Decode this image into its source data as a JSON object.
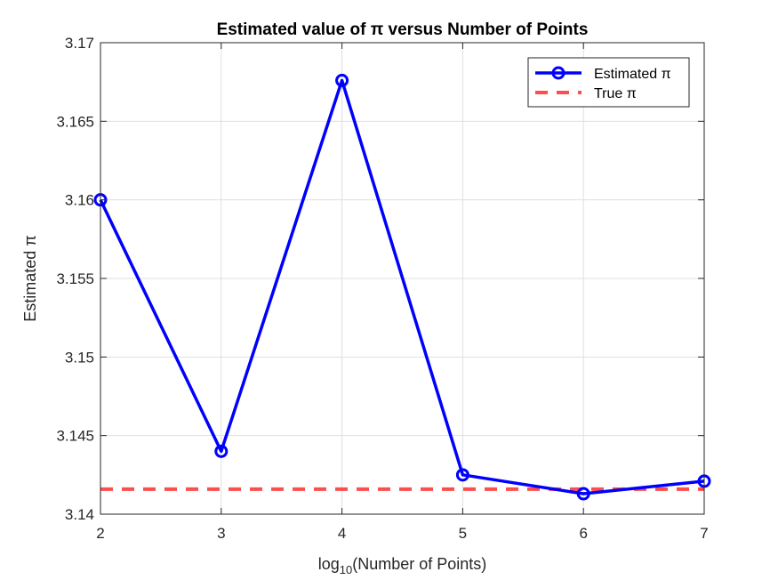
{
  "chart_data": {
    "type": "line",
    "title": "Estimated value of π versus Number of Points",
    "xlabel": {
      "base": "log",
      "subscript": "10",
      "rest": "(Number of Points)"
    },
    "ylabel": "Estimated π",
    "xlim": [
      2,
      7
    ],
    "ylim": [
      3.14,
      3.17
    ],
    "xticks": [
      2,
      3,
      4,
      5,
      6,
      7
    ],
    "xtick_labels": [
      "2",
      "3",
      "4",
      "5",
      "6",
      "7"
    ],
    "yticks": [
      3.14,
      3.145,
      3.15,
      3.155,
      3.16,
      3.165,
      3.17
    ],
    "ytick_labels": [
      "3.14",
      "3.145",
      "3.15",
      "3.155",
      "3.16",
      "3.165",
      "3.17"
    ],
    "grid": true,
    "legend_position": "top-right",
    "series": [
      {
        "name": "Estimated π",
        "style": "solid-line-circle-markers",
        "color": "#0000ff",
        "x": [
          2,
          3,
          4,
          5,
          6,
          7
        ],
        "y": [
          3.16,
          3.144,
          3.1676,
          3.1425,
          3.1413,
          3.1421
        ]
      },
      {
        "name": "True π",
        "style": "dashed",
        "color": "#ff4d4d",
        "x": [
          2,
          7
        ],
        "y": [
          3.14159,
          3.14159
        ]
      }
    ]
  }
}
